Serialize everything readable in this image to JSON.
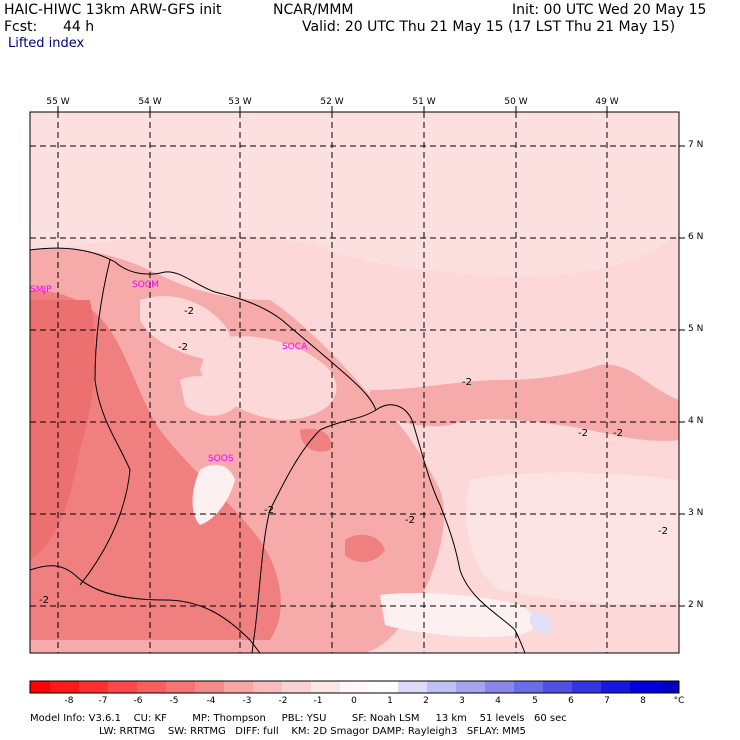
{
  "header": {
    "model": "HAIC-HIWC 13km ARW-GFS init",
    "org": "NCAR/MMM",
    "init": "Init: 00 UTC Wed 20 May 15",
    "fcst_label": "Fcst:",
    "fcst_value": "44 h",
    "valid": "Valid: 20 UTC Thu 21 May 15 (17 LST Thu 21 May 15)",
    "field": "Lifted index"
  },
  "axes": {
    "lon_labels": [
      "55 W",
      "54 W",
      "53 W",
      "52 W",
      "51 W",
      "50 W",
      "49 W"
    ],
    "lat_labels": [
      "7 N",
      "6 N",
      "5 N",
      "4 N",
      "3 N",
      "2 N"
    ]
  },
  "stations": [
    {
      "id": "SMJP"
    },
    {
      "id": "SOCM"
    },
    {
      "id": "SOCA"
    },
    {
      "id": "SOOS"
    }
  ],
  "contour_labels": [
    "-2",
    "-2",
    "-2",
    "-2",
    "-2",
    "-2",
    "-2",
    "-2",
    "-2"
  ],
  "colorbar": {
    "labels": [
      "-8",
      "-7",
      "-6",
      "-5",
      "-4",
      "-3",
      "-2",
      "-1",
      "0",
      "1",
      "2",
      "3",
      "4",
      "5",
      "6",
      "7",
      "8"
    ],
    "unit": "°C",
    "colors": [
      "#ff0000",
      "#ff2020",
      "#ff3a3a",
      "#ff5555",
      "#f56a6a",
      "#f58888",
      "#f5a5a5",
      "#f8c4c4",
      "#fde3e3",
      "#ffffff",
      "#dcdcff",
      "#bcbcf5",
      "#9a9af0",
      "#7878ea",
      "#5656e5",
      "#3030e0",
      "#0000dd"
    ]
  },
  "footer": {
    "line1": "Model Info: V3.6.1    CU: KF        MP: Thompson     PBL: YSU        SF: Noah LSM     13 km    51 levels   60 sec",
    "line2": "LW: RRTMG    SW: RRTMG   DIFF: full    KM: 2D Smagor DAMP: Rayleigh3   SFLAY: MM5"
  },
  "palette": {
    "light_pink": "#fcd8d8",
    "medium_pink": "#f7aaaa",
    "dark_pink": "#f07f7f",
    "near_white": "#fdf0f0",
    "light_blue": "#e0e0fa",
    "station_color": "#ff00ff",
    "coast_color": "#000000"
  }
}
